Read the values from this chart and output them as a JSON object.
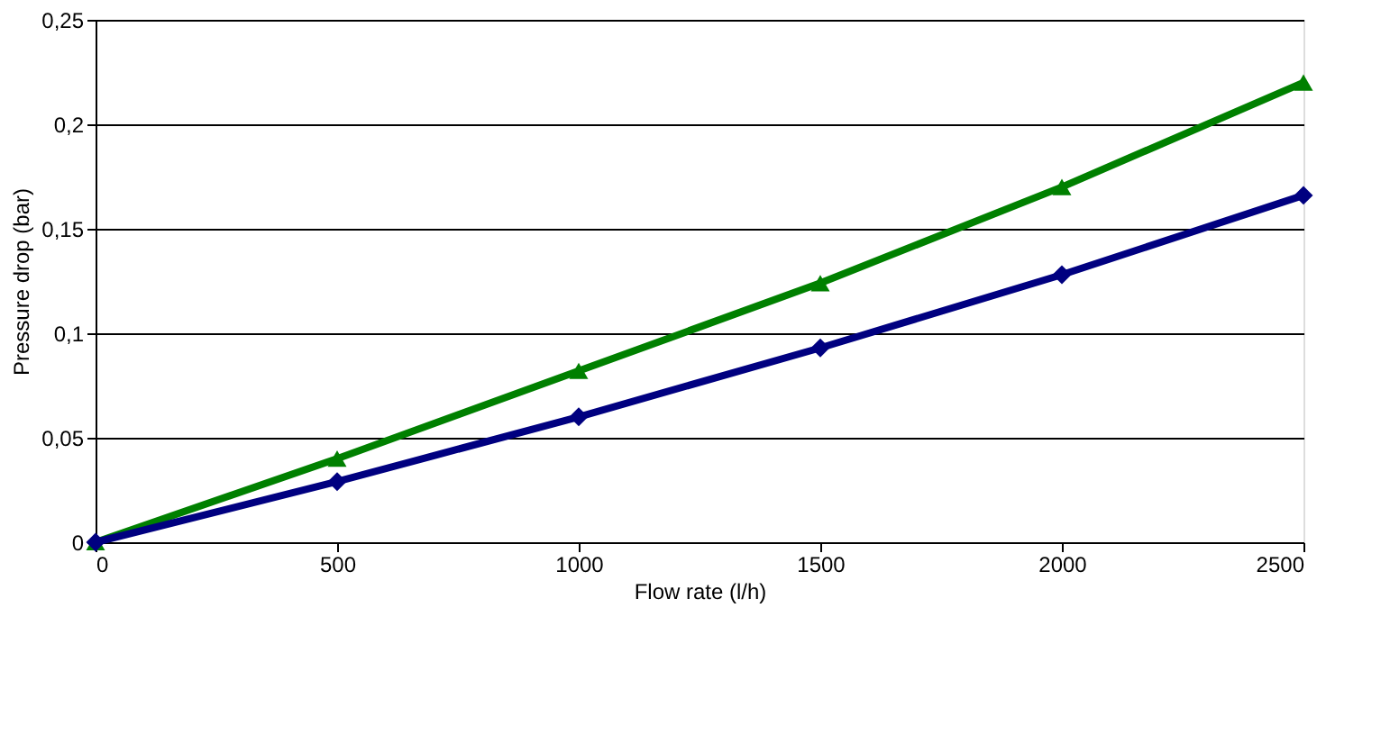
{
  "chart_data": {
    "type": "line",
    "xlabel": "Flow rate  (l/h)",
    "ylabel": "Pressure drop (bar)",
    "x": [
      0,
      500,
      1000,
      1500,
      2000,
      2500
    ],
    "series": [
      {
        "color": "#008000",
        "marker": "triangle",
        "values": [
          0,
          0.04,
          0.082,
          0.124,
          0.17,
          0.22
        ]
      },
      {
        "color": "#000080",
        "marker": "diamond",
        "values": [
          0,
          0.029,
          0.06,
          0.093,
          0.128,
          0.166
        ]
      }
    ],
    "xlim": [
      0,
      2500
    ],
    "xticks": [
      0,
      500,
      1000,
      1500,
      2000,
      2500
    ],
    "ylim": [
      0,
      0.25
    ],
    "yticks": [
      {
        "value": 0,
        "label": "0"
      },
      {
        "value": 0.05,
        "label": "0,05"
      },
      {
        "value": 0.1,
        "label": "0,1"
      },
      {
        "value": 0.15,
        "label": "0,15"
      },
      {
        "value": 0.2,
        "label": "0,2"
      },
      {
        "value": 0.25,
        "label": "0,25"
      }
    ],
    "grid": "y"
  }
}
